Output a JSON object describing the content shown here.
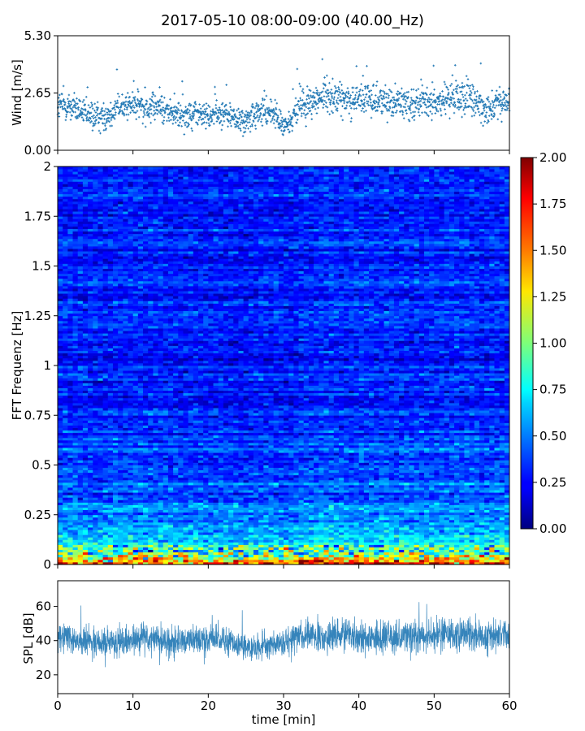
{
  "figure": {
    "title": "2017-05-10 08:00-09:00 (40.00_Hz)"
  },
  "colors": {
    "wind": "#1f77b4",
    "spl": "#1f77b4",
    "axis": "#000000",
    "colormap": "jet"
  },
  "chart_data": [
    {
      "type": "scatter",
      "name": "wind-panel",
      "ylabel": "Wind [m/s]",
      "xlim": [
        0,
        60
      ],
      "ylim": [
        0,
        5.3
      ],
      "yticks": [
        0.0,
        2.65,
        5.3
      ],
      "ytick_labels": [
        "0.00",
        "2.65",
        "5.30"
      ],
      "grid": false,
      "series": [
        {
          "x": [
            0,
            2,
            4,
            6,
            8,
            10,
            12,
            14,
            16,
            18,
            20,
            22,
            24,
            25,
            26,
            28,
            29,
            30,
            31,
            32,
            34,
            36,
            38,
            40,
            42,
            44,
            46,
            48,
            50,
            52,
            54,
            56,
            58,
            60
          ],
          "y": [
            2.1,
            2.0,
            1.6,
            1.5,
            2.0,
            2.1,
            2.0,
            1.9,
            1.6,
            1.7,
            1.6,
            1.7,
            1.4,
            1.3,
            1.6,
            1.8,
            1.6,
            1.1,
            1.3,
            2.1,
            2.3,
            2.6,
            2.3,
            2.4,
            2.3,
            2.3,
            2.2,
            2.2,
            2.2,
            2.4,
            2.5,
            2.0,
            2.1,
            2.2
          ],
          "spread": [
            0.55,
            0.55,
            0.5,
            0.5,
            0.55,
            0.55,
            0.55,
            0.5,
            0.5,
            0.5,
            0.5,
            0.5,
            0.5,
            0.5,
            0.5,
            0.5,
            0.5,
            0.45,
            0.5,
            0.6,
            0.6,
            0.65,
            0.6,
            0.6,
            0.6,
            0.6,
            0.6,
            0.6,
            0.6,
            0.7,
            0.75,
            0.6,
            0.6,
            0.6
          ]
        }
      ]
    },
    {
      "type": "heatmap",
      "name": "spectrogram-panel",
      "ylabel": "FFT Frequenz [Hz]",
      "xlim": [
        0,
        60
      ],
      "ylim": [
        0,
        2
      ],
      "yticks": [
        0,
        0.25,
        0.5,
        0.75,
        1,
        1.25,
        1.5,
        1.75,
        2
      ],
      "ytick_labels": [
        "0",
        "0.25",
        "0.5",
        "0.75",
        "1",
        "1.25",
        "1.5",
        "1.75",
        "2"
      ],
      "colorbar": {
        "range": [
          0,
          2
        ],
        "ticks": [
          0.0,
          0.25,
          0.5,
          0.75,
          1.0,
          1.25,
          1.5,
          1.75,
          2.0
        ],
        "tick_labels": [
          "0.00",
          "0.25",
          "0.50",
          "0.75",
          "1.00",
          "1.25",
          "1.50",
          "1.75",
          "2.00"
        ]
      },
      "level_profile": {
        "freq": [
          0,
          0.03,
          0.06,
          0.1,
          0.15,
          0.25,
          0.35,
          0.5,
          0.75,
          1.0,
          1.5,
          2.0
        ],
        "value": [
          1.8,
          1.3,
          0.95,
          0.75,
          0.6,
          0.48,
          0.42,
          0.38,
          0.34,
          0.32,
          0.3,
          0.29
        ]
      }
    },
    {
      "type": "line",
      "name": "spl-panel",
      "ylabel": "SPL [dB]",
      "xlabel": "time [min]",
      "xlim": [
        0,
        60
      ],
      "ylim": [
        9,
        75
      ],
      "yticks": [
        20,
        40,
        60
      ],
      "ytick_labels": [
        "20",
        "40",
        "60"
      ],
      "xticks": [
        0,
        10,
        20,
        30,
        40,
        50,
        60
      ],
      "xtick_labels": [
        "0",
        "10",
        "20",
        "30",
        "40",
        "50",
        "60"
      ],
      "grid": false,
      "series": [
        {
          "x": [
            0,
            3,
            6,
            9,
            12,
            15,
            18,
            21,
            24,
            26,
            28,
            30,
            32,
            35,
            38,
            41,
            44,
            47,
            50,
            53,
            56,
            60
          ],
          "y": [
            42,
            40,
            39,
            40,
            41,
            40,
            40,
            41,
            37,
            36,
            37,
            39,
            43,
            42,
            43,
            43,
            41,
            42,
            43,
            44,
            42,
            43
          ],
          "spread": [
            9,
            9,
            9,
            9,
            9,
            9,
            9,
            9,
            9,
            9,
            9,
            9,
            10,
            10,
            10,
            10,
            10,
            10,
            10,
            11,
            10,
            10
          ]
        }
      ]
    }
  ]
}
